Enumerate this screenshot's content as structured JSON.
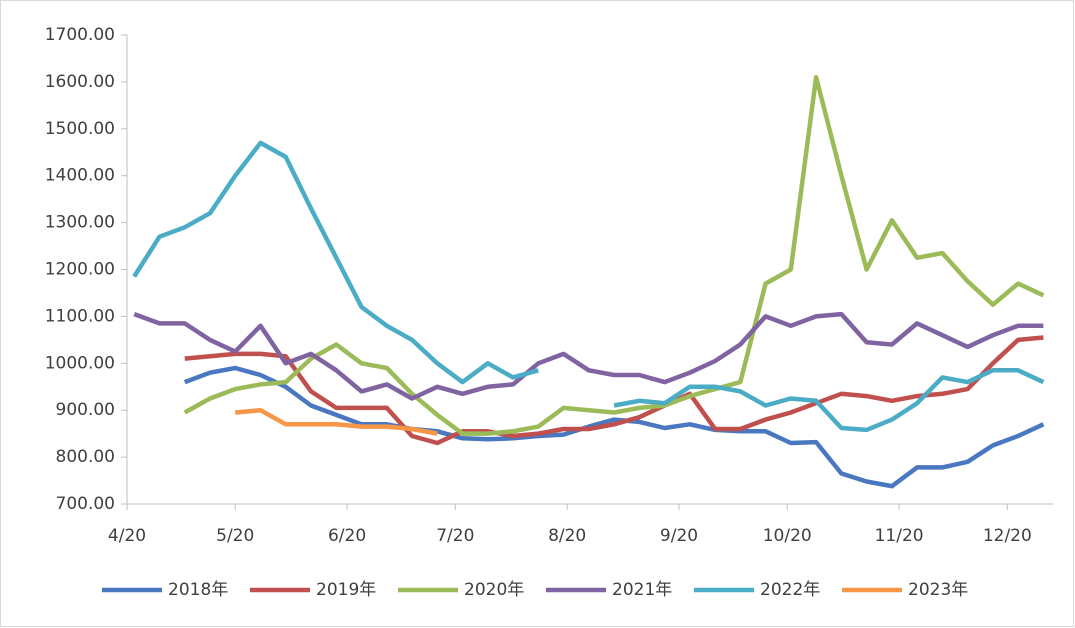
{
  "chart_data": {
    "type": "line",
    "x": [
      "4/22",
      "4/29",
      "5/6",
      "5/13",
      "5/20",
      "5/27",
      "6/3",
      "6/10",
      "6/17",
      "6/24",
      "7/1",
      "7/8",
      "7/15",
      "7/22",
      "7/29",
      "8/5",
      "8/12",
      "8/19",
      "8/26",
      "9/2",
      "9/9",
      "9/16",
      "9/23",
      "9/30",
      "10/7",
      "10/14",
      "10/21",
      "10/28",
      "11/4",
      "11/11",
      "11/18",
      "11/25",
      "12/2",
      "12/9",
      "12/16",
      "12/23",
      "12/30"
    ],
    "xlim": [
      "4/20",
      "12/31"
    ],
    "xticks": [
      "4/20",
      "5/20",
      "6/20",
      "7/20",
      "8/20",
      "9/20",
      "10/20",
      "11/20",
      "12/20"
    ],
    "ylim": [
      700,
      1700
    ],
    "yticks": [
      {
        "value": 700,
        "label": "700.00"
      },
      {
        "value": 800,
        "label": "800.00"
      },
      {
        "value": 900,
        "label": "900.00"
      },
      {
        "value": 1000,
        "label": "1000.00"
      },
      {
        "value": 1100,
        "label": "1100.00"
      },
      {
        "value": 1200,
        "label": "1200.00"
      },
      {
        "value": 1300,
        "label": "1300.00"
      },
      {
        "value": 1400,
        "label": "1400.00"
      },
      {
        "value": 1500,
        "label": "1500.00"
      },
      {
        "value": 1600,
        "label": "1600.00"
      },
      {
        "value": 1700,
        "label": "1700.00"
      }
    ],
    "legend": "bottom",
    "series": [
      {
        "name": "2018年",
        "color": "#4a78c0",
        "values": [
          null,
          null,
          960,
          980,
          990,
          975,
          950,
          910,
          890,
          870,
          870,
          860,
          855,
          840,
          838,
          840,
          845,
          848,
          865,
          880,
          875,
          862,
          870,
          858,
          855,
          855,
          830,
          832,
          765,
          748,
          738,
          778,
          778,
          790,
          825,
          845,
          870
        ]
      },
      {
        "name": "2019年",
        "color": "#c0504d",
        "values": [
          null,
          null,
          1010,
          1015,
          1020,
          1020,
          1015,
          940,
          905,
          905,
          905,
          845,
          830,
          855,
          855,
          845,
          850,
          860,
          860,
          870,
          885,
          910,
          935,
          860,
          860,
          880,
          895,
          915,
          935,
          930,
          920,
          930,
          935,
          945,
          1000,
          1050,
          1055
        ]
      },
      {
        "name": "2020年",
        "color": "#9bbb59",
        "values": [
          null,
          null,
          895,
          925,
          945,
          955,
          960,
          1010,
          1040,
          1000,
          990,
          935,
          890,
          850,
          850,
          855,
          865,
          905,
          900,
          895,
          905,
          910,
          930,
          945,
          960,
          1170,
          1200,
          1610,
          1400,
          1200,
          1305,
          1225,
          1235,
          1175,
          1125,
          1170,
          1145
        ]
      },
      {
        "name": "2021年",
        "color": "#8064a2",
        "values": [
          1105,
          1085,
          1085,
          1050,
          1025,
          1080,
          1000,
          1020,
          985,
          940,
          955,
          925,
          950,
          935,
          950,
          955,
          1000,
          1020,
          985,
          975,
          975,
          960,
          980,
          1005,
          1040,
          1100,
          1080,
          1100,
          1105,
          1045,
          1040,
          1085,
          1060,
          1035,
          1060,
          1080,
          1080
        ]
      },
      {
        "name": "2022年",
        "color": "#4bacc6",
        "values": [
          1185,
          1270,
          1290,
          1320,
          1400,
          1470,
          1440,
          1330,
          1225,
          1120,
          1080,
          1050,
          1000,
          960,
          1000,
          970,
          985,
          null,
          null,
          910,
          920,
          915,
          950,
          950,
          940,
          910,
          925,
          920,
          862,
          858,
          880,
          915,
          970,
          960,
          985,
          985,
          960
        ]
      },
      {
        "name": "2023年",
        "color": "#f79646",
        "values": [
          null,
          null,
          null,
          null,
          895,
          900,
          870,
          870,
          870,
          865,
          865,
          860,
          850,
          null,
          null,
          null,
          null,
          null,
          null,
          null,
          null,
          null,
          null,
          null,
          null,
          null,
          null,
          null,
          null,
          null,
          null,
          null,
          null,
          null,
          null,
          null,
          null
        ]
      }
    ]
  }
}
